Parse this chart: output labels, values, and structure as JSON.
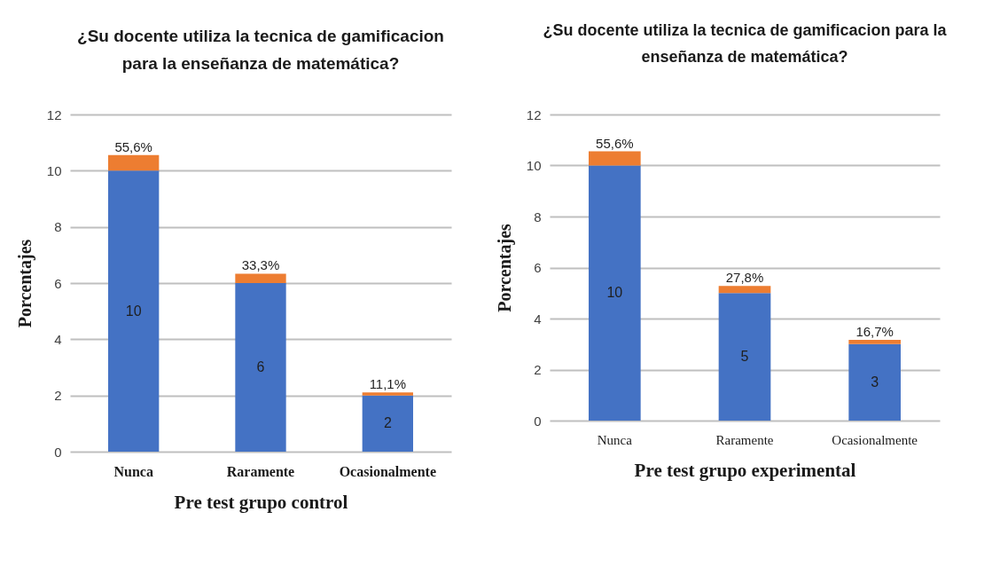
{
  "chart_data": [
    {
      "type": "bar",
      "title": "¿Su docente utiliza la tecnica de  gamificacion para la enseñanza de matemática?",
      "xlabel": "Pre test grupo control",
      "ylabel": "Porcentajes",
      "categories": [
        "Nunca",
        "Raramente",
        "Ocasionalmente"
      ],
      "stacked": true,
      "series": [
        {
          "color": "#4472c4",
          "values": [
            10,
            6,
            2
          ],
          "value_labels": [
            "10",
            "6",
            "2"
          ]
        },
        {
          "color": "#ed7d31",
          "values": [
            0.556,
            0.333,
            0.111
          ],
          "value_labels": [
            "55,6%",
            "33,3%",
            "11,1%"
          ]
        }
      ],
      "ylim": [
        0,
        12
      ],
      "yticks": [
        0,
        2,
        4,
        6,
        8,
        10,
        12
      ],
      "grid": "y",
      "legend": false
    },
    {
      "type": "bar",
      "title": "¿Su docente utiliza la tecnica de  gamificacion para la enseñanza de matemática?",
      "xlabel": "Pre test grupo experimental",
      "ylabel": "Porcentajes",
      "categories": [
        "Nunca",
        "Raramente",
        "Ocasionalmente"
      ],
      "stacked": true,
      "series": [
        {
          "color": "#4472c4",
          "values": [
            10,
            5,
            3
          ],
          "value_labels": [
            "10",
            "5",
            "3"
          ]
        },
        {
          "color": "#ed7d31",
          "values": [
            0.556,
            0.278,
            0.167
          ],
          "value_labels": [
            "55,6%",
            "27,8%",
            "16,7%"
          ]
        }
      ],
      "ylim": [
        0,
        12
      ],
      "yticks": [
        0,
        2,
        4,
        6,
        8,
        10,
        12
      ],
      "grid": "y",
      "legend": false
    }
  ]
}
